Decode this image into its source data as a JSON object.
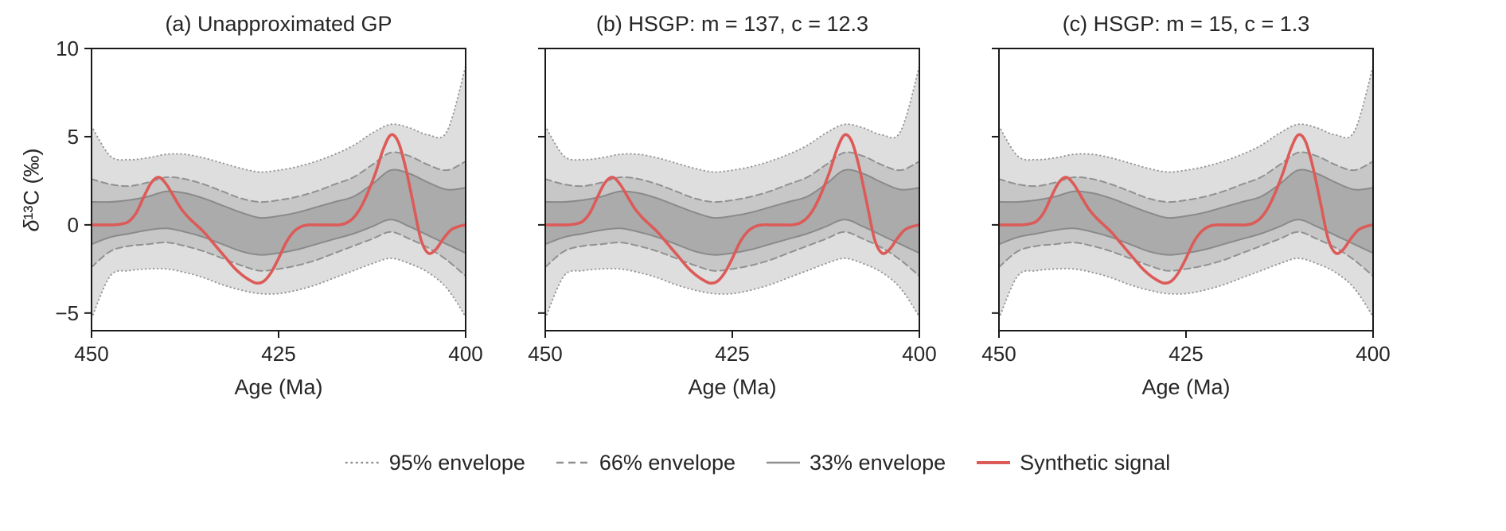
{
  "figure": {
    "ylabel": "δ¹³C (‰)",
    "ylabel_delta": "δ",
    "ylabel_rest": "¹³C (‰)",
    "xlabel": "Age (Ma)"
  },
  "band_styles": {
    "p95": {
      "label": "95% envelope",
      "fill": "#dedede",
      "stroke": "#979797",
      "dash": "0.5 4.5"
    },
    "p66": {
      "label": "66% envelope",
      "fill": "#c7c7c7",
      "stroke": "#919191",
      "dash": "8 5"
    },
    "p33": {
      "label": "33% envelope",
      "fill": "#ababab",
      "stroke": "#8a8a8a",
      "dash": "none"
    }
  },
  "legend": [
    {
      "label": "95% envelope",
      "color": "#8f8f8f",
      "dash": "0.5 6",
      "width": 2.6
    },
    {
      "label": "66% envelope",
      "color": "#8f8f8f",
      "dash": "9 6",
      "width": 2.6
    },
    {
      "label": "33% envelope",
      "color": "#8f8f8f",
      "dash": "none",
      "width": 2.6
    },
    {
      "label": "Synthetic signal",
      "color": "#dc5b58",
      "dash": "none",
      "width": 4
    }
  ],
  "chart_data": [
    {
      "type": "area",
      "title": "(a) Unapproximated GP",
      "xlabel": "Age (Ma)",
      "ylabel": "δ¹³C (‰)",
      "xlim": [
        450,
        400
      ],
      "ylim": [
        -6,
        10
      ],
      "xticks": [
        450,
        425,
        400
      ],
      "yticks": [
        -5,
        0,
        5,
        10
      ],
      "x": [
        450,
        447.5,
        445,
        442.5,
        440,
        437.5,
        435,
        432.5,
        430,
        427.5,
        425,
        422.5,
        420,
        417.5,
        415,
        412.5,
        410,
        407.5,
        405,
        402.5,
        400
      ],
      "bands": {
        "p95": {
          "upper": [
            5.6,
            3.9,
            3.7,
            3.8,
            4.0,
            4.0,
            3.8,
            3.5,
            3.2,
            3.0,
            3.1,
            3.3,
            3.6,
            4.0,
            4.5,
            5.2,
            5.7,
            5.5,
            5.1,
            5.3,
            9.0
          ],
          "lower": [
            -5.3,
            -2.9,
            -2.6,
            -2.5,
            -2.5,
            -2.7,
            -3.0,
            -3.4,
            -3.7,
            -3.9,
            -3.9,
            -3.7,
            -3.4,
            -3.0,
            -2.6,
            -2.2,
            -1.9,
            -2.2,
            -2.7,
            -3.6,
            -5.2
          ]
        },
        "p66": {
          "upper": [
            2.6,
            2.3,
            2.2,
            2.4,
            2.7,
            2.6,
            2.3,
            1.9,
            1.5,
            1.3,
            1.4,
            1.6,
            1.9,
            2.3,
            2.7,
            3.4,
            4.1,
            3.9,
            3.4,
            3.1,
            3.6
          ],
          "lower": [
            -2.4,
            -1.5,
            -1.2,
            -1.1,
            -1.0,
            -1.2,
            -1.5,
            -1.9,
            -2.3,
            -2.6,
            -2.5,
            -2.3,
            -2.0,
            -1.6,
            -1.2,
            -0.8,
            -0.4,
            -0.8,
            -1.3,
            -2.0,
            -2.9
          ]
        },
        "p33": {
          "upper": [
            1.3,
            1.3,
            1.4,
            1.6,
            1.9,
            1.8,
            1.5,
            1.1,
            0.7,
            0.4,
            0.5,
            0.7,
            1.0,
            1.3,
            1.6,
            2.3,
            3.1,
            2.9,
            2.4,
            2.0,
            2.1
          ],
          "lower": [
            -1.1,
            -0.7,
            -0.5,
            -0.3,
            -0.2,
            -0.4,
            -0.7,
            -1.1,
            -1.5,
            -1.7,
            -1.6,
            -1.4,
            -1.1,
            -0.8,
            -0.5,
            -0.1,
            0.3,
            -0.1,
            -0.6,
            -1.1,
            -1.6
          ]
        }
      },
      "signal": {
        "name": "Synthetic signal",
        "color": "#dc5b58",
        "x": [
          450,
          449,
          448,
          447,
          446,
          445,
          444,
          443,
          442,
          441,
          440,
          439,
          438,
          437,
          436,
          435,
          434,
          433,
          432,
          431,
          430,
          429,
          428,
          427,
          426,
          425,
          424,
          423,
          422,
          421,
          420,
          419,
          418,
          417,
          416,
          415,
          414,
          413,
          412,
          411,
          410,
          409,
          408,
          407,
          406,
          405,
          404,
          403,
          402,
          401,
          400
        ],
        "y": [
          0,
          0,
          0,
          0,
          0.05,
          0.2,
          0.7,
          1.6,
          2.4,
          2.7,
          2.3,
          1.6,
          0.9,
          0.4,
          0,
          -0.4,
          -0.9,
          -1.4,
          -1.9,
          -2.4,
          -2.8,
          -3.1,
          -3.3,
          -3.2,
          -2.7,
          -1.9,
          -1.0,
          -0.4,
          -0.1,
          0,
          0,
          0,
          0,
          0,
          0.1,
          0.4,
          1.0,
          1.9,
          3.0,
          4.3,
          5.1,
          4.7,
          3.2,
          1.2,
          -0.8,
          -1.6,
          -1.4,
          -0.8,
          -0.3,
          -0.1,
          0
        ]
      }
    },
    {
      "type": "area",
      "title": "(b) HSGP: m = 137, c = 12.3",
      "xlabel": "Age (Ma)",
      "ylabel": "δ¹³C (‰)",
      "xlim": [
        450,
        400
      ],
      "ylim": [
        -6,
        10
      ],
      "xticks": [
        450,
        425,
        400
      ],
      "yticks": [
        -5,
        0,
        5,
        10
      ],
      "x": [
        450,
        447.5,
        445,
        442.5,
        440,
        437.5,
        435,
        432.5,
        430,
        427.5,
        425,
        422.5,
        420,
        417.5,
        415,
        412.5,
        410,
        407.5,
        405,
        402.5,
        400
      ],
      "bands": {
        "p95": {
          "upper": [
            5.6,
            3.9,
            3.7,
            3.8,
            4.0,
            4.0,
            3.8,
            3.5,
            3.2,
            3.0,
            3.1,
            3.3,
            3.6,
            4.0,
            4.5,
            5.2,
            5.7,
            5.5,
            5.1,
            5.3,
            9.0
          ],
          "lower": [
            -5.3,
            -2.9,
            -2.6,
            -2.5,
            -2.5,
            -2.7,
            -3.0,
            -3.4,
            -3.7,
            -3.9,
            -3.9,
            -3.7,
            -3.4,
            -3.0,
            -2.6,
            -2.2,
            -1.9,
            -2.2,
            -2.7,
            -3.6,
            -5.2
          ]
        },
        "p66": {
          "upper": [
            2.6,
            2.3,
            2.2,
            2.4,
            2.7,
            2.6,
            2.3,
            1.9,
            1.5,
            1.3,
            1.4,
            1.6,
            1.9,
            2.3,
            2.7,
            3.4,
            4.1,
            3.9,
            3.4,
            3.1,
            3.6
          ],
          "lower": [
            -2.4,
            -1.5,
            -1.2,
            -1.1,
            -1.0,
            -1.2,
            -1.5,
            -1.9,
            -2.3,
            -2.6,
            -2.5,
            -2.3,
            -2.0,
            -1.6,
            -1.2,
            -0.8,
            -0.4,
            -0.8,
            -1.3,
            -2.0,
            -2.9
          ]
        },
        "p33": {
          "upper": [
            1.3,
            1.3,
            1.4,
            1.6,
            1.9,
            1.8,
            1.5,
            1.1,
            0.7,
            0.4,
            0.5,
            0.7,
            1.0,
            1.3,
            1.6,
            2.3,
            3.1,
            2.9,
            2.4,
            2.0,
            2.1
          ],
          "lower": [
            -1.1,
            -0.7,
            -0.5,
            -0.3,
            -0.2,
            -0.4,
            -0.7,
            -1.1,
            -1.5,
            -1.7,
            -1.6,
            -1.4,
            -1.1,
            -0.8,
            -0.5,
            -0.1,
            0.3,
            -0.1,
            -0.6,
            -1.1,
            -1.6
          ]
        }
      },
      "signal": {
        "name": "Synthetic signal",
        "color": "#dc5b58",
        "x": [
          450,
          449,
          448,
          447,
          446,
          445,
          444,
          443,
          442,
          441,
          440,
          439,
          438,
          437,
          436,
          435,
          434,
          433,
          432,
          431,
          430,
          429,
          428,
          427,
          426,
          425,
          424,
          423,
          422,
          421,
          420,
          419,
          418,
          417,
          416,
          415,
          414,
          413,
          412,
          411,
          410,
          409,
          408,
          407,
          406,
          405,
          404,
          403,
          402,
          401,
          400
        ],
        "y": [
          0,
          0,
          0,
          0,
          0.05,
          0.2,
          0.7,
          1.6,
          2.4,
          2.7,
          2.3,
          1.6,
          0.9,
          0.4,
          0,
          -0.4,
          -0.9,
          -1.4,
          -1.9,
          -2.4,
          -2.8,
          -3.1,
          -3.3,
          -3.2,
          -2.7,
          -1.9,
          -1.0,
          -0.4,
          -0.1,
          0,
          0,
          0,
          0,
          0,
          0.1,
          0.4,
          1.0,
          1.9,
          3.0,
          4.3,
          5.1,
          4.7,
          3.2,
          1.2,
          -0.8,
          -1.6,
          -1.4,
          -0.8,
          -0.3,
          -0.1,
          0
        ]
      }
    },
    {
      "type": "area",
      "title": "(c) HSGP: m = 15, c = 1.3",
      "xlabel": "Age (Ma)",
      "ylabel": "δ¹³C (‰)",
      "xlim": [
        450,
        400
      ],
      "ylim": [
        -6,
        10
      ],
      "xticks": [
        450,
        425,
        400
      ],
      "yticks": [
        -5,
        0,
        5,
        10
      ],
      "x": [
        450,
        447.5,
        445,
        442.5,
        440,
        437.5,
        435,
        432.5,
        430,
        427.5,
        425,
        422.5,
        420,
        417.5,
        415,
        412.5,
        410,
        407.5,
        405,
        402.5,
        400
      ],
      "bands": {
        "p95": {
          "upper": [
            5.6,
            3.9,
            3.7,
            3.8,
            4.0,
            4.0,
            3.8,
            3.5,
            3.2,
            3.0,
            3.1,
            3.3,
            3.6,
            4.0,
            4.5,
            5.2,
            5.7,
            5.5,
            5.1,
            5.3,
            9.0
          ],
          "lower": [
            -5.3,
            -2.9,
            -2.6,
            -2.5,
            -2.5,
            -2.7,
            -3.0,
            -3.4,
            -3.7,
            -3.9,
            -3.9,
            -3.7,
            -3.4,
            -3.0,
            -2.6,
            -2.2,
            -1.9,
            -2.2,
            -2.7,
            -3.6,
            -5.2
          ]
        },
        "p66": {
          "upper": [
            2.6,
            2.3,
            2.2,
            2.4,
            2.7,
            2.6,
            2.3,
            1.9,
            1.5,
            1.3,
            1.4,
            1.6,
            1.9,
            2.3,
            2.7,
            3.4,
            4.1,
            3.9,
            3.4,
            3.1,
            3.6
          ],
          "lower": [
            -2.4,
            -1.5,
            -1.2,
            -1.1,
            -1.0,
            -1.2,
            -1.5,
            -1.9,
            -2.3,
            -2.6,
            -2.5,
            -2.3,
            -2.0,
            -1.6,
            -1.2,
            -0.8,
            -0.4,
            -0.8,
            -1.3,
            -2.0,
            -2.9
          ]
        },
        "p33": {
          "upper": [
            1.3,
            1.3,
            1.4,
            1.6,
            1.9,
            1.8,
            1.5,
            1.1,
            0.7,
            0.4,
            0.5,
            0.7,
            1.0,
            1.3,
            1.6,
            2.3,
            3.1,
            2.9,
            2.4,
            2.0,
            2.1
          ],
          "lower": [
            -1.1,
            -0.7,
            -0.5,
            -0.3,
            -0.2,
            -0.4,
            -0.7,
            -1.1,
            -1.5,
            -1.7,
            -1.6,
            -1.4,
            -1.1,
            -0.8,
            -0.5,
            -0.1,
            0.3,
            -0.1,
            -0.6,
            -1.1,
            -1.6
          ]
        }
      },
      "signal": {
        "name": "Synthetic signal",
        "color": "#dc5b58",
        "x": [
          450,
          449,
          448,
          447,
          446,
          445,
          444,
          443,
          442,
          441,
          440,
          439,
          438,
          437,
          436,
          435,
          434,
          433,
          432,
          431,
          430,
          429,
          428,
          427,
          426,
          425,
          424,
          423,
          422,
          421,
          420,
          419,
          418,
          417,
          416,
          415,
          414,
          413,
          412,
          411,
          410,
          409,
          408,
          407,
          406,
          405,
          404,
          403,
          402,
          401,
          400
        ],
        "y": [
          0,
          0,
          0,
          0,
          0.05,
          0.2,
          0.7,
          1.6,
          2.4,
          2.7,
          2.3,
          1.6,
          0.9,
          0.4,
          0,
          -0.4,
          -0.9,
          -1.4,
          -1.9,
          -2.4,
          -2.8,
          -3.1,
          -3.3,
          -3.2,
          -2.7,
          -1.9,
          -1.0,
          -0.4,
          -0.1,
          0,
          0,
          0,
          0,
          0,
          0.1,
          0.4,
          1.0,
          1.9,
          3.0,
          4.3,
          5.1,
          4.7,
          3.2,
          1.2,
          -0.8,
          -1.6,
          -1.4,
          -0.8,
          -0.3,
          -0.1,
          0
        ]
      }
    }
  ]
}
